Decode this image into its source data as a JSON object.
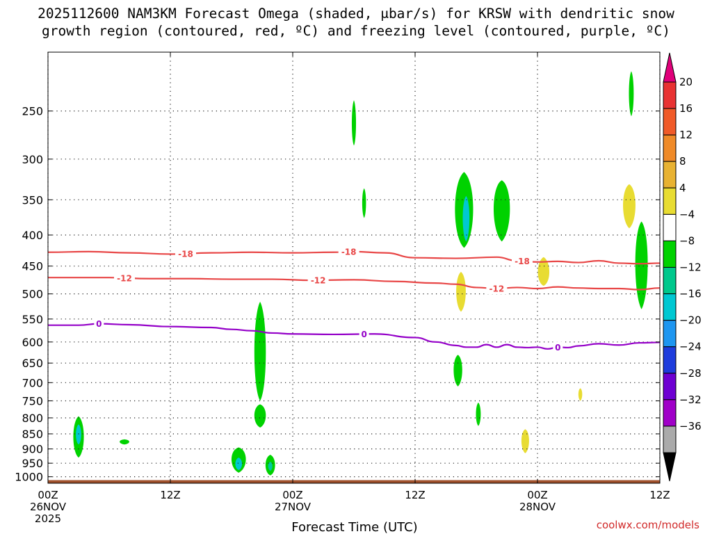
{
  "title_line1": "2025112600 NAM3KM Forecast Omega (shaded, μbar/s) for KRSW with dendritic snow",
  "title_line2": "growth region (contoured, red, ºC) and freezing level (contoured, purple, ºC)",
  "credit": "coolwx.com/models",
  "chart_data": {
    "type": "heatmap",
    "title": "2025112600 NAM3KM Forecast Omega (shaded, μbar/s) for KRSW with dendritic snow growth region (contoured, red, ºC) and freezing level (contoured, purple, ºC)",
    "xlabel": "Forecast Time (UTC)",
    "ylabel": "",
    "x_range_hours": [
      0,
      60
    ],
    "y_range_hpa": [
      1025,
      200
    ],
    "y_scale": "log",
    "grid": true,
    "x_ticks": [
      {
        "hour": 0,
        "l1": "00Z",
        "l2": "26NOV",
        "l3": "2025"
      },
      {
        "hour": 12,
        "l1": "12Z",
        "l2": "",
        "l3": ""
      },
      {
        "hour": 24,
        "l1": "00Z",
        "l2": "27NOV",
        "l3": ""
      },
      {
        "hour": 36,
        "l1": "12Z",
        "l2": "",
        "l3": ""
      },
      {
        "hour": 48,
        "l1": "00Z",
        "l2": "28NOV",
        "l3": ""
      },
      {
        "hour": 60,
        "l1": "12Z",
        "l2": "",
        "l3": ""
      }
    ],
    "y_ticks": [
      250,
      300,
      350,
      400,
      450,
      500,
      550,
      600,
      650,
      700,
      750,
      800,
      850,
      900,
      950,
      1000
    ],
    "colorbar": {
      "labels": [
        "20",
        "16",
        "12",
        "8",
        "4",
        "−4",
        "−8",
        "−12",
        "−16",
        "−20",
        "−24",
        "−28",
        "−32",
        "−36"
      ],
      "top_color": "#e0007a",
      "bottom_color": "#000000",
      "colors": [
        "#e83232",
        "#f05a28",
        "#ef8a28",
        "#e8b232",
        "#e8dc32",
        "#ffffff",
        "#00d200",
        "#00c88c",
        "#00c8d2",
        "#1e96f0",
        "#1e3cdc",
        "#6e00d2",
        "#a000c8",
        "#aaaaaa"
      ]
    },
    "contours": [
      {
        "label": "-18",
        "color": "#e84646",
        "points": [
          [
            0,
            427
          ],
          [
            4,
            426
          ],
          [
            8,
            428
          ],
          [
            12,
            430
          ],
          [
            16,
            428
          ],
          [
            20,
            427
          ],
          [
            24,
            428
          ],
          [
            28,
            427
          ],
          [
            30,
            426
          ],
          [
            33,
            428
          ],
          [
            36,
            436
          ],
          [
            40,
            437
          ],
          [
            44,
            435
          ],
          [
            46,
            441
          ],
          [
            48,
            443
          ],
          [
            50,
            442
          ],
          [
            52,
            444
          ],
          [
            54,
            441
          ],
          [
            56,
            445
          ],
          [
            58,
            446
          ],
          [
            60,
            445
          ]
        ],
        "label_hours": [
          13.5,
          29.5,
          46.5
        ]
      },
      {
        "label": "-12",
        "color": "#e84646",
        "points": [
          [
            0,
            470
          ],
          [
            6,
            470
          ],
          [
            10,
            472
          ],
          [
            14,
            472
          ],
          [
            18,
            473
          ],
          [
            22,
            473
          ],
          [
            26,
            475
          ],
          [
            30,
            474
          ],
          [
            34,
            477
          ],
          [
            38,
            480
          ],
          [
            40,
            482
          ],
          [
            42,
            488
          ],
          [
            44,
            490
          ],
          [
            46,
            488
          ],
          [
            48,
            490
          ],
          [
            50,
            487
          ],
          [
            52,
            489
          ],
          [
            54,
            490
          ],
          [
            56,
            490
          ],
          [
            58,
            492
          ],
          [
            60,
            489
          ]
        ],
        "label_hours": [
          7.5,
          26.5,
          44
        ]
      },
      {
        "label": "0",
        "color": "#9400c8",
        "points": [
          [
            0,
            563
          ],
          [
            3,
            563
          ],
          [
            5,
            560
          ],
          [
            8,
            562
          ],
          [
            12,
            566
          ],
          [
            16,
            568
          ],
          [
            18,
            572
          ],
          [
            20,
            575
          ],
          [
            22,
            580
          ],
          [
            24,
            582
          ],
          [
            28,
            583
          ],
          [
            32,
            582
          ],
          [
            36,
            590
          ],
          [
            38,
            600
          ],
          [
            40,
            608
          ],
          [
            41,
            612
          ],
          [
            42,
            612
          ],
          [
            43,
            606
          ],
          [
            44,
            612
          ],
          [
            45,
            606
          ],
          [
            46,
            612
          ],
          [
            47,
            613
          ],
          [
            48,
            612
          ],
          [
            49,
            616
          ],
          [
            50,
            612
          ],
          [
            51,
            613
          ],
          [
            52,
            609
          ],
          [
            54,
            604
          ],
          [
            56,
            607
          ],
          [
            58,
            602
          ],
          [
            60,
            601
          ]
        ],
        "label_hours": [
          5,
          31,
          50
        ]
      }
    ],
    "omega_cells": [
      {
        "h": 3.0,
        "p": 865,
        "hw": 0.55,
        "pbot": 930,
        "ptop": 795,
        "color": "#00d200"
      },
      {
        "h": 3.0,
        "p": 855,
        "hw": 0.28,
        "pbot": 885,
        "ptop": 820,
        "color": "#00c8d2"
      },
      {
        "h": 7.5,
        "p": 875,
        "hw": 0.5,
        "pbot": 885,
        "ptop": 868,
        "color": "#00d200"
      },
      {
        "h": 18.7,
        "p": 930,
        "hw": 0.75,
        "pbot": 985,
        "ptop": 895,
        "color": "#00d200"
      },
      {
        "h": 18.7,
        "p": 955,
        "hw": 0.35,
        "pbot": 975,
        "ptop": 930,
        "color": "#00c8d2"
      },
      {
        "h": 21.8,
        "p": 960,
        "hw": 0.5,
        "pbot": 995,
        "ptop": 920,
        "color": "#00d200"
      },
      {
        "h": 21.8,
        "p": 960,
        "hw": 0.22,
        "pbot": 978,
        "ptop": 945,
        "color": "#00c8a0"
      },
      {
        "h": 20.8,
        "p": 790,
        "hw": 0.6,
        "pbot": 830,
        "ptop": 760,
        "color": "#00d200"
      },
      {
        "h": 20.8,
        "p": 640,
        "hw": 0.6,
        "pbot": 750,
        "ptop": 515,
        "color": "#00d200"
      },
      {
        "h": 30.0,
        "p": 265,
        "hw": 0.22,
        "pbot": 285,
        "ptop": 240,
        "color": "#00d200"
      },
      {
        "h": 31.0,
        "p": 355,
        "hw": 0.2,
        "pbot": 375,
        "ptop": 335,
        "color": "#00d200"
      },
      {
        "h": 40.8,
        "p": 365,
        "hw": 0.95,
        "pbot": 420,
        "ptop": 315,
        "color": "#00d200"
      },
      {
        "h": 41.0,
        "p": 375,
        "hw": 0.35,
        "pbot": 410,
        "ptop": 345,
        "color": "#00c8d2"
      },
      {
        "h": 44.5,
        "p": 355,
        "hw": 0.85,
        "pbot": 410,
        "ptop": 325,
        "color": "#00d200"
      },
      {
        "h": 40.5,
        "p": 495,
        "hw": 0.5,
        "pbot": 535,
        "ptop": 460,
        "color": "#e8dc32"
      },
      {
        "h": 40.2,
        "p": 665,
        "hw": 0.45,
        "pbot": 710,
        "ptop": 630,
        "color": "#00d200"
      },
      {
        "h": 42.2,
        "p": 790,
        "hw": 0.25,
        "pbot": 825,
        "ptop": 755,
        "color": "#00d200"
      },
      {
        "h": 46.8,
        "p": 870,
        "hw": 0.4,
        "pbot": 915,
        "ptop": 835,
        "color": "#e8dc32"
      },
      {
        "h": 48.6,
        "p": 465,
        "hw": 0.6,
        "pbot": 485,
        "ptop": 435,
        "color": "#e8dc32"
      },
      {
        "h": 52.2,
        "p": 730,
        "hw": 0.2,
        "pbot": 750,
        "ptop": 715,
        "color": "#e8dc32"
      },
      {
        "h": 57.2,
        "p": 235,
        "hw": 0.25,
        "pbot": 255,
        "ptop": 215,
        "color": "#00d200"
      },
      {
        "h": 57.0,
        "p": 355,
        "hw": 0.65,
        "pbot": 390,
        "ptop": 330,
        "color": "#e8dc32"
      },
      {
        "h": 58.2,
        "p": 440,
        "hw": 0.65,
        "pbot": 530,
        "ptop": 380,
        "color": "#00d200"
      }
    ],
    "terrain": {
      "color": "#a0522d",
      "top_hpa": 1013,
      "bottom_hpa": 1025
    }
  }
}
